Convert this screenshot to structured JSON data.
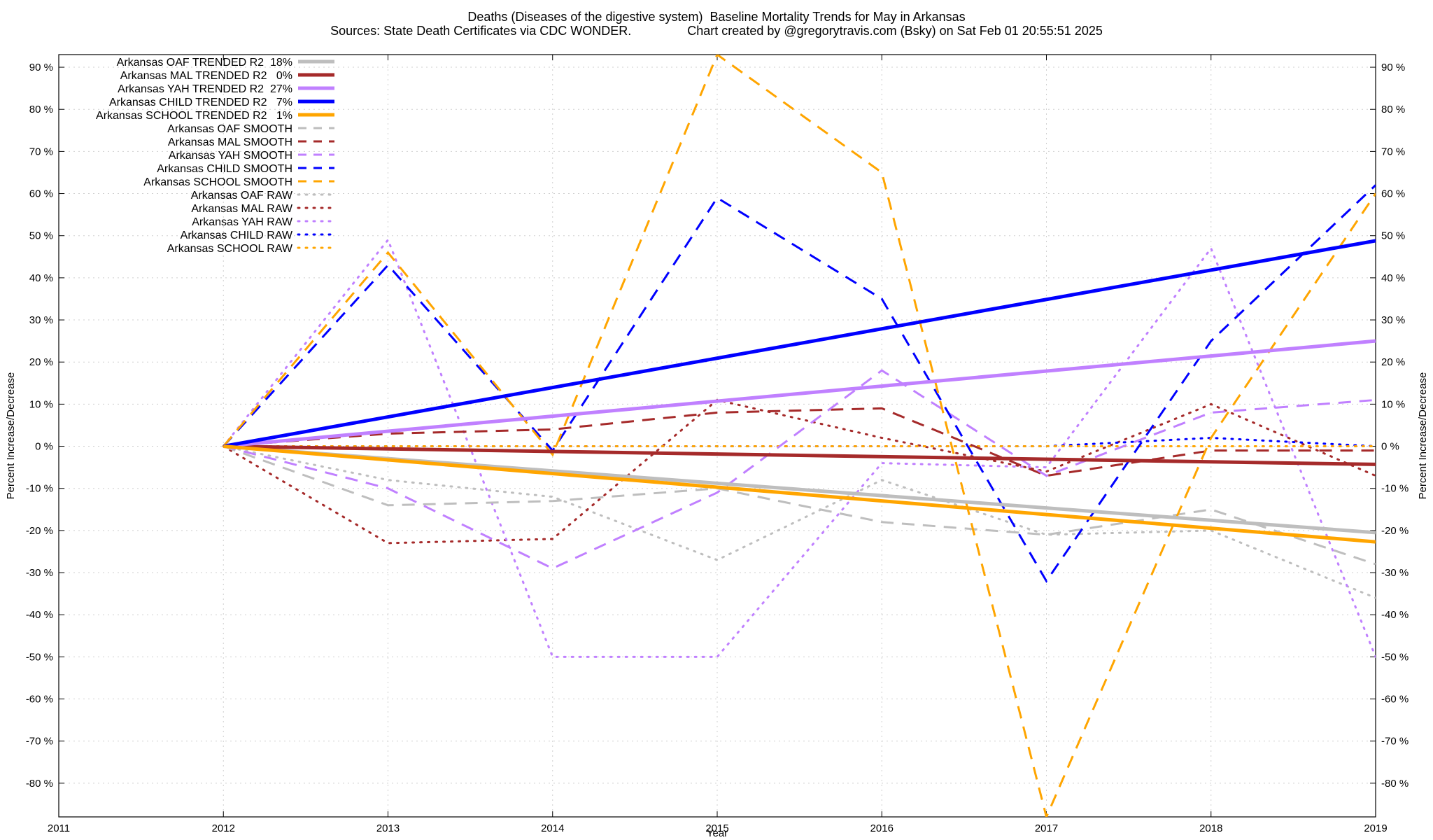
{
  "chart_data": {
    "type": "line",
    "title": "Deaths (Diseases of the digestive system)  Baseline Mortality Trends for May in Arkansas",
    "subtitle": "Sources: State Death Certificates via CDC WONDER.                Chart created by @gregorytravis.com (Bsky) on Sat Feb 01 20:55:51 2025",
    "xlabel": "Year",
    "ylabel": "Percent Increase/Decrease",
    "y2label": "Percent Increase/Decrease",
    "xlim": [
      2011,
      2019
    ],
    "ylim": [
      -88,
      93
    ],
    "x_ticks": [
      2011,
      2012,
      2013,
      2014,
      2015,
      2016,
      2017,
      2018,
      2019
    ],
    "x_tick_labels": [
      "2011",
      "2012",
      "2013",
      "2014",
      "2015",
      "2016",
      "2017",
      "2018",
      "2019"
    ],
    "y_ticks": [
      90,
      80,
      70,
      60,
      50,
      40,
      30,
      20,
      10,
      0,
      -10,
      -20,
      -30,
      -40,
      -50,
      -60,
      -70,
      -80
    ],
    "y_tick_labels": [
      "90 %",
      "80 %",
      "70 %",
      "60 %",
      "50 %",
      "40 %",
      "30 %",
      "20 %",
      "10 %",
      "0 %",
      "-10 %",
      "-20 %",
      "-30 %",
      "-40 %",
      "-50 %",
      "-60 %",
      "-70 %",
      "-80 %"
    ],
    "grid": true,
    "legend_position": "top-left",
    "x": [
      2012,
      2013,
      2014,
      2015,
      2016,
      2017,
      2018,
      2019
    ],
    "series": [
      {
        "name": "Arkansas OAF TRENDED R2  18%",
        "style": "solid",
        "color": "#bebebe",
        "x": [
          2012,
          2019
        ],
        "values": [
          0,
          -20.5
        ]
      },
      {
        "name": "Arkansas MAL TRENDED R2   0%",
        "style": "solid",
        "color": "#a52a2a",
        "x": [
          2012,
          2019
        ],
        "values": [
          0,
          -4.3
        ]
      },
      {
        "name": "Arkansas YAH TRENDED R2  27%",
        "style": "solid",
        "color": "#c080ff",
        "x": [
          2012,
          2019
        ],
        "values": [
          0,
          25
        ]
      },
      {
        "name": "Arkansas CHILD TRENDED R2   7%",
        "style": "solid",
        "color": "#0000ff",
        "x": [
          2012,
          2019
        ],
        "values": [
          0,
          48.8
        ]
      },
      {
        "name": "Arkansas SCHOOL TRENDED R2   1%",
        "style": "solid",
        "color": "#ffa500",
        "x": [
          2012,
          2019
        ],
        "values": [
          0,
          -22.7
        ]
      },
      {
        "name": "Arkansas OAF SMOOTH",
        "style": "dashed",
        "color": "#bebebe",
        "values": [
          0,
          -14,
          -13,
          -10,
          -18,
          -21,
          -15,
          -28
        ]
      },
      {
        "name": "Arkansas MAL SMOOTH",
        "style": "dashed",
        "color": "#a52a2a",
        "values": [
          0,
          3,
          4,
          8,
          9,
          -7,
          -1,
          -1
        ]
      },
      {
        "name": "Arkansas YAH SMOOTH",
        "style": "dashed",
        "color": "#c080ff",
        "values": [
          0,
          -10,
          -29,
          -11,
          18,
          -7,
          8,
          11
        ]
      },
      {
        "name": "Arkansas CHILD SMOOTH",
        "style": "dashed",
        "color": "#0000ff",
        "values": [
          0,
          43,
          -1,
          59,
          35,
          -32,
          25,
          62
        ]
      },
      {
        "name": "Arkansas SCHOOL SMOOTH",
        "style": "dashed",
        "color": "#ffa500",
        "values": [
          0,
          46,
          -2,
          93,
          65,
          -88,
          2,
          60
        ]
      },
      {
        "name": "Arkansas OAF RAW",
        "style": "dotted",
        "color": "#bebebe",
        "values": [
          0,
          -8,
          -12,
          -27,
          -8,
          -21,
          -20,
          -36
        ]
      },
      {
        "name": "Arkansas MAL RAW",
        "style": "dotted",
        "color": "#a52a2a",
        "values": [
          0,
          -23,
          -22,
          11,
          2,
          -6,
          10,
          -7
        ]
      },
      {
        "name": "Arkansas YAH RAW",
        "style": "dotted",
        "color": "#c080ff",
        "values": [
          0,
          49,
          -50,
          -50,
          -4,
          -5,
          47,
          -50
        ]
      },
      {
        "name": "Arkansas CHILD RAW",
        "style": "dotted",
        "color": "#0000ff",
        "values": [
          0,
          0,
          0,
          0,
          0,
          0,
          2,
          0
        ]
      },
      {
        "name": "Arkansas SCHOOL RAW",
        "style": "dotted",
        "color": "#ffa500",
        "values": [
          0,
          0,
          0,
          0,
          0,
          0,
          0,
          0
        ]
      }
    ]
  }
}
